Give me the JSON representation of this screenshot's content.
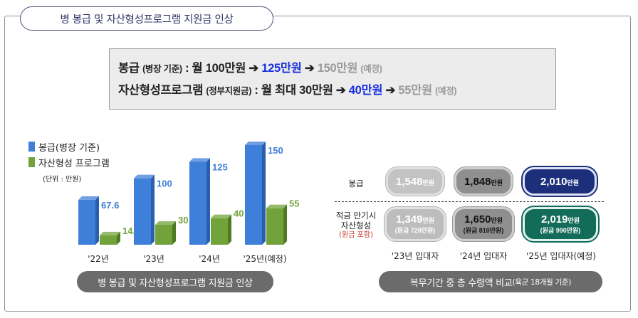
{
  "title": "병 봉급 및 자산형성프로그램 지원금 인상",
  "summary": {
    "line1": {
      "label": "봉급",
      "label_note": "(병장 기준)",
      "colon": " : 월 ",
      "v1": "100만원",
      "arrow": " ➔ ",
      "v2": "125만원",
      "v3": "150만원",
      "note": "(예정)"
    },
    "line2": {
      "label": "자산형성프로그램",
      "label_note": "(정부지원금)",
      "colon": " : 월 최대 ",
      "v1": "30만원",
      "arrow": " ➔ ",
      "v2": "40만원",
      "v3": "55만원",
      "note": "(예정)"
    }
  },
  "legend": {
    "series1": "봉급(병장 기준)",
    "series2": "자산형성 프로그램",
    "unit": "(단위 : 만원)"
  },
  "colors": {
    "blue": "#3d7fd9",
    "green": "#72a33a"
  },
  "chart_data": {
    "type": "bar",
    "categories": [
      "'22년",
      "'23년",
      "'24년",
      "'25년(예정)"
    ],
    "series": [
      {
        "name": "봉급(병장 기준)",
        "values": [
          67.6,
          100,
          125,
          150
        ],
        "labels": [
          "67.6",
          "100",
          "125",
          "150"
        ]
      },
      {
        "name": "자산형성 프로그램",
        "values": [
          14.1,
          30,
          40,
          55
        ],
        "labels": [
          "14.1",
          "30",
          "40",
          "55"
        ]
      }
    ],
    "ylim": [
      0,
      150
    ]
  },
  "chart_caption": "병 봉급 및 자산형성프로그램 지원금 인상",
  "comparison": {
    "row1_label": "봉급",
    "row2_label_lines": [
      "적금 만기시",
      "자산형성"
    ],
    "row2_sub": "(원금 포함)",
    "unit_small": "만원",
    "boxes_row1": [
      "1,548",
      "1,848",
      "2,010"
    ],
    "boxes_row2": [
      {
        "value": "1,349",
        "note": "(원금 720만원)"
      },
      {
        "value": "1,650",
        "note": "(원금 810만원)"
      },
      {
        "value": "2,019",
        "note": "(원금 990만원)"
      }
    ],
    "columns": [
      "'23년 입대자",
      "'24년 입대자",
      "'25년 입대자(예정)"
    ],
    "caption_main": "복무기간 중 총 수령액 비교",
    "caption_sub": "(육군 18개월 기준)"
  }
}
